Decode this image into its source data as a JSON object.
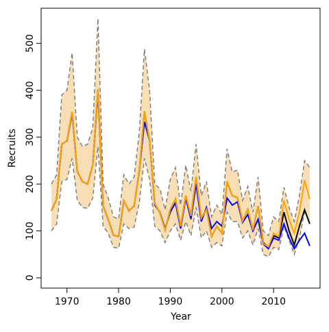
{
  "chart_data": {
    "type": "line",
    "xlabel": "Year",
    "ylabel": "Recruits",
    "x": [
      1967,
      1968,
      1969,
      1970,
      1971,
      1972,
      1973,
      1974,
      1975,
      1976,
      1977,
      1978,
      1979,
      1980,
      1981,
      1982,
      1983,
      1984,
      1985,
      1986,
      1987,
      1988,
      1989,
      1990,
      1991,
      1992,
      1993,
      1994,
      1995,
      1996,
      1997,
      1998,
      1999,
      2000,
      2001,
      2002,
      2003,
      2004,
      2005,
      2006,
      2007,
      2008,
      2009,
      2010,
      2011,
      2012,
      2013,
      2014,
      2015,
      2016,
      2017
    ],
    "band": {
      "color": "#f7deb5",
      "edge_color": "#7f7f7f",
      "upper": [
        200,
        220,
        390,
        400,
        480,
        300,
        280,
        285,
        320,
        553,
        200,
        170,
        130,
        125,
        220,
        200,
        215,
        310,
        488,
        400,
        200,
        190,
        145,
        210,
        235,
        155,
        240,
        185,
        285,
        175,
        205,
        130,
        155,
        135,
        275,
        225,
        230,
        165,
        195,
        140,
        215,
        100,
        90,
        130,
        120,
        193,
        150,
        120,
        175,
        250,
        235
      ],
      "lower": [
        100,
        115,
        205,
        210,
        255,
        165,
        150,
        148,
        170,
        280,
        110,
        95,
        65,
        63,
        115,
        105,
        108,
        160,
        255,
        210,
        110,
        100,
        75,
        100,
        115,
        80,
        120,
        90,
        150,
        85,
        100,
        65,
        75,
        68,
        140,
        120,
        120,
        85,
        100,
        70,
        105,
        50,
        45,
        65,
        60,
        110,
        80,
        50,
        85,
        140,
        120
      ]
    },
    "series": [
      {
        "color": "#000000",
        "values": [
          143,
          168,
          285,
          292,
          354,
          227,
          205,
          200,
          241,
          402,
          153,
          124,
          91,
          88,
          164,
          143,
          153,
          227,
          355,
          292,
          158,
          139,
          102,
          146,
          168,
          110,
          175,
          132,
          215,
          127,
          146,
          88,
          110,
          95,
          205,
          175,
          171,
          121,
          146,
          102,
          153,
          75,
          65,
          90,
          85,
          140,
          100,
          70,
          110,
          145,
          115
        ]
      },
      {
        "color": "#0000ff",
        "values": [
          143,
          168,
          285,
          292,
          350,
          227,
          205,
          200,
          241,
          395,
          153,
          124,
          91,
          88,
          164,
          143,
          153,
          227,
          333,
          292,
          155,
          140,
          105,
          140,
          160,
          105,
          170,
          125,
          200,
          120,
          150,
          105,
          120,
          110,
          170,
          155,
          162,
          118,
          135,
          100,
          125,
          72,
          62,
          85,
          80,
          115,
          85,
          62,
          80,
          95,
          68
        ]
      },
      {
        "color": "#ffa500",
        "values": [
          143,
          168,
          285,
          292,
          354,
          227,
          205,
          200,
          241,
          402,
          153,
          124,
          91,
          88,
          164,
          143,
          153,
          227,
          355,
          292,
          158,
          139,
          102,
          146,
          168,
          110,
          175,
          132,
          215,
          127,
          146,
          88,
          110,
          95,
          205,
          175,
          171,
          121,
          146,
          102,
          153,
          73,
          66,
          95,
          88,
          165,
          124,
          95,
          139,
          208,
          168
        ]
      }
    ],
    "xlim": [
      1965,
      2019
    ],
    "ylim": [
      -22,
      575
    ],
    "xticks": [
      1970,
      1980,
      1990,
      2000,
      2010
    ],
    "yticks": [
      0,
      100,
      200,
      300,
      400,
      500
    ]
  }
}
